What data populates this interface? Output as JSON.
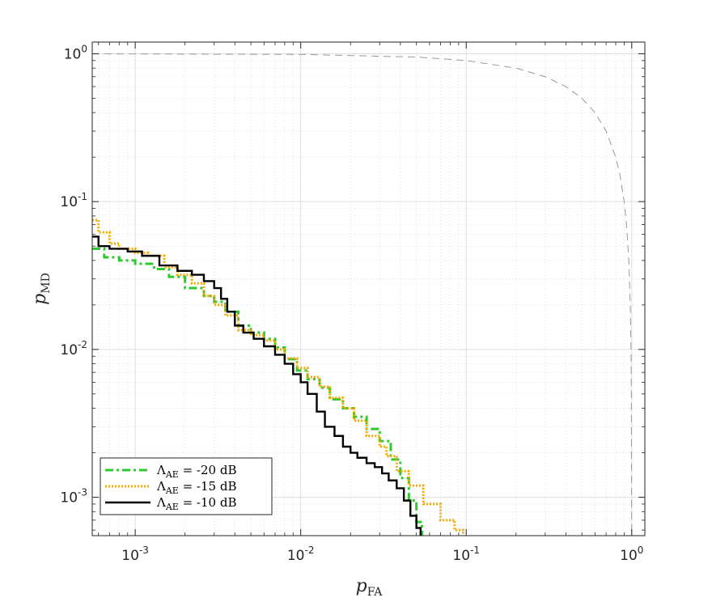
{
  "chart_data": {
    "type": "line",
    "xscale": "log",
    "yscale": "log",
    "xlim": [
      0.00055,
      1.2
    ],
    "ylim": [
      0.00055,
      1.2
    ],
    "grid": true,
    "minor_grid": true,
    "legend_position": "bottom-left",
    "xlabel": {
      "symbol": "p",
      "sub": "FA"
    },
    "ylabel": {
      "symbol": "p",
      "sub": "MD"
    },
    "x_ticks": [
      {
        "value": 0.001,
        "base": "10",
        "exp": "-3"
      },
      {
        "value": 0.01,
        "base": "10",
        "exp": "-2"
      },
      {
        "value": 0.1,
        "base": "10",
        "exp": "-1"
      },
      {
        "value": 1,
        "base": "10",
        "exp": "0"
      }
    ],
    "y_ticks": [
      {
        "value": 0.001,
        "base": "10",
        "exp": "-3"
      },
      {
        "value": 0.01,
        "base": "10",
        "exp": "-2"
      },
      {
        "value": 0.1,
        "base": "10",
        "exp": "-1"
      },
      {
        "value": 1,
        "base": "10",
        "exp": "0"
      }
    ],
    "series": [
      {
        "name": "Λ_AE = -20 dB",
        "legend": {
          "sym": "Λ",
          "sub": "AE",
          "rest": " = -20 dB"
        },
        "color": "#2ec92e",
        "style": "dashdot",
        "x": [
          0.00055,
          0.00065,
          0.0008,
          0.001,
          0.0013,
          0.0016,
          0.002,
          0.0026,
          0.003,
          0.0035,
          0.0042,
          0.005,
          0.006,
          0.007,
          0.008,
          0.0095,
          0.011,
          0.013,
          0.015,
          0.018,
          0.021,
          0.025,
          0.03,
          0.035,
          0.04,
          0.045,
          0.05,
          0.054
        ],
        "y": [
          0.048,
          0.042,
          0.04,
          0.038,
          0.035,
          0.031,
          0.026,
          0.023,
          0.021,
          0.018,
          0.0145,
          0.013,
          0.0118,
          0.0103,
          0.0086,
          0.0072,
          0.0063,
          0.0055,
          0.0046,
          0.004,
          0.0035,
          0.0029,
          0.0024,
          0.0018,
          0.00135,
          0.00095,
          0.00068,
          0.00055
        ]
      },
      {
        "name": "Λ_AE = -15 dB",
        "legend": {
          "sym": "Λ",
          "sub": "AE",
          "rest": " = -15 dB"
        },
        "color": "#f5a800",
        "style": "dotted",
        "x": [
          0.00055,
          0.0006,
          0.0007,
          0.0008,
          0.001,
          0.0012,
          0.0015,
          0.0018,
          0.0022,
          0.0026,
          0.003,
          0.0035,
          0.0042,
          0.005,
          0.006,
          0.007,
          0.008,
          0.0095,
          0.011,
          0.013,
          0.015,
          0.018,
          0.021,
          0.025,
          0.03,
          0.033,
          0.038,
          0.045,
          0.055,
          0.07,
          0.085,
          0.096
        ],
        "y": [
          0.075,
          0.062,
          0.052,
          0.048,
          0.045,
          0.043,
          0.036,
          0.032,
          0.028,
          0.023,
          0.02,
          0.017,
          0.0135,
          0.0125,
          0.0115,
          0.01,
          0.0087,
          0.0075,
          0.0065,
          0.0056,
          0.0047,
          0.004,
          0.0033,
          0.0026,
          0.0022,
          0.0019,
          0.0015,
          0.0012,
          0.0009,
          0.0007,
          0.0006,
          0.00055
        ]
      },
      {
        "name": "Λ_AE = -10 dB",
        "legend": {
          "sym": "Λ",
          "sub": "AE",
          "rest": " = -10 dB"
        },
        "color": "#000000",
        "style": "solid",
        "x": [
          0.00055,
          0.0006,
          0.0007,
          0.0009,
          0.0011,
          0.0014,
          0.0018,
          0.0022,
          0.0026,
          0.003,
          0.0033,
          0.0036,
          0.004,
          0.0045,
          0.0052,
          0.006,
          0.007,
          0.008,
          0.009,
          0.01,
          0.011,
          0.0125,
          0.014,
          0.016,
          0.018,
          0.02,
          0.022,
          0.025,
          0.028,
          0.031,
          0.034,
          0.038,
          0.042,
          0.046,
          0.05,
          0.053
        ],
        "y": [
          0.058,
          0.05,
          0.048,
          0.046,
          0.043,
          0.037,
          0.034,
          0.032,
          0.029,
          0.026,
          0.022,
          0.018,
          0.0145,
          0.013,
          0.0118,
          0.0105,
          0.0092,
          0.008,
          0.0068,
          0.006,
          0.005,
          0.0038,
          0.003,
          0.0026,
          0.0022,
          0.002,
          0.00185,
          0.0017,
          0.0016,
          0.00145,
          0.0013,
          0.00115,
          0.00095,
          0.00075,
          0.00062,
          0.00055
        ]
      },
      {
        "name": "",
        "color": "#999999",
        "style": "dashed",
        "legend_hidden": true,
        "x": [
          0.00055,
          0.01,
          0.05,
          0.1,
          0.2,
          0.3,
          0.4,
          0.5,
          0.6,
          0.7,
          0.8,
          0.85,
          0.9,
          0.93,
          0.96,
          0.98,
          0.99,
          0.995,
          0.999
        ],
        "y": [
          0.9995,
          0.99,
          0.95,
          0.9,
          0.8,
          0.7,
          0.6,
          0.5,
          0.4,
          0.3,
          0.2,
          0.15,
          0.1,
          0.07,
          0.04,
          0.02,
          0.01,
          0.005,
          0.00055
        ]
      }
    ]
  }
}
